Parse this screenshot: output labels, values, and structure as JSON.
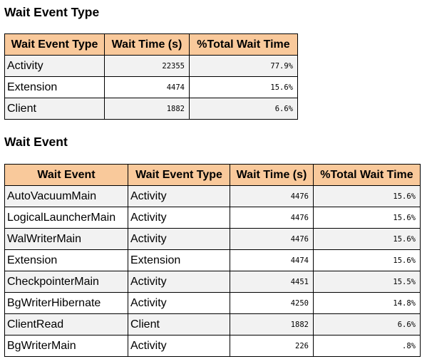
{
  "wait_event_type_section": {
    "title": "Wait Event Type",
    "columns": [
      "Wait Event Type",
      "Wait Time (s)",
      "%Total Wait Time"
    ],
    "rows": [
      {
        "type": "Activity",
        "wait_time": "22355",
        "pct_total": "77.9%"
      },
      {
        "type": "Extension",
        "wait_time": "4474",
        "pct_total": "15.6%"
      },
      {
        "type": "Client",
        "wait_time": "1882",
        "pct_total": "6.6%"
      }
    ]
  },
  "wait_event_section": {
    "title": "Wait Event",
    "columns": [
      "Wait Event",
      "Wait Event Type",
      "Wait Time (s)",
      "%Total Wait Time"
    ],
    "rows": [
      {
        "event": "AutoVacuumMain",
        "type": "Activity",
        "wait_time": "4476",
        "pct_total": "15.6%"
      },
      {
        "event": "LogicalLauncherMain",
        "type": "Activity",
        "wait_time": "4476",
        "pct_total": "15.6%"
      },
      {
        "event": "WalWriterMain",
        "type": "Activity",
        "wait_time": "4476",
        "pct_total": "15.6%"
      },
      {
        "event": "Extension",
        "type": "Extension",
        "wait_time": "4474",
        "pct_total": "15.6%"
      },
      {
        "event": "CheckpointerMain",
        "type": "Activity",
        "wait_time": "4451",
        "pct_total": "15.5%"
      },
      {
        "event": "BgWriterHibernate",
        "type": "Activity",
        "wait_time": "4250",
        "pct_total": "14.8%"
      },
      {
        "event": "ClientRead",
        "type": "Client",
        "wait_time": "1882",
        "pct_total": "6.6%"
      },
      {
        "event": "BgWriterMain",
        "type": "Activity",
        "wait_time": "226",
        "pct_total": ".8%"
      }
    ]
  }
}
